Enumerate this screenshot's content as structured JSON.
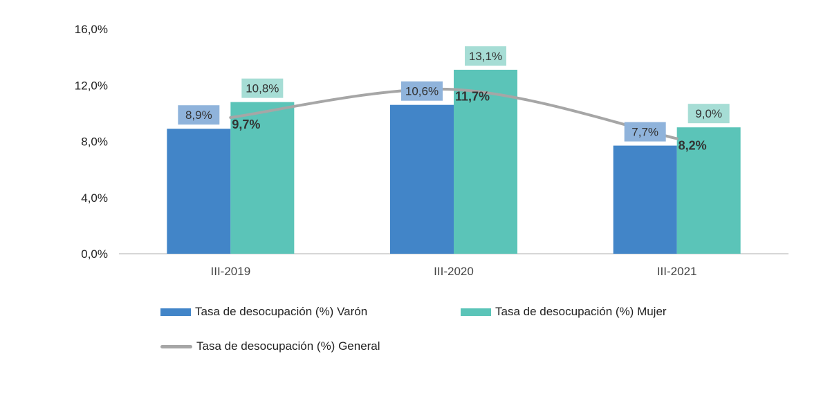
{
  "chart_data": {
    "type": "bar",
    "categories": [
      "III-2019",
      "III-2020",
      "III-2021"
    ],
    "ylim": [
      0,
      16
    ],
    "yticks": [
      0,
      4,
      8,
      12,
      16
    ],
    "ytick_labels": [
      "0,0%",
      "4,0%",
      "8,0%",
      "12,0%",
      "16,0%"
    ],
    "grid": false,
    "legend_position": "bottom",
    "series": [
      {
        "name": "Tasa de desocupación (%) Varón",
        "kind": "bar",
        "color": "#4285c8",
        "label_bg": "#8fb3db",
        "values": [
          8.9,
          10.6,
          7.7
        ],
        "labels": [
          "8,9%",
          "10,6%",
          "7,7%"
        ]
      },
      {
        "name": "Tasa de desocupación (%) Mujer",
        "kind": "bar",
        "color": "#5bc4b8",
        "label_bg": "#a6ddd5",
        "values": [
          10.8,
          13.1,
          9.0
        ],
        "labels": [
          "10,8%",
          "13,1%",
          "9,0%"
        ]
      },
      {
        "name": "Tasa de desocupación (%) General",
        "kind": "line",
        "color": "#a6a6a6",
        "values": [
          9.7,
          11.7,
          8.2
        ],
        "labels": [
          "9,7%",
          "11,7%",
          "8,2%"
        ]
      }
    ]
  }
}
